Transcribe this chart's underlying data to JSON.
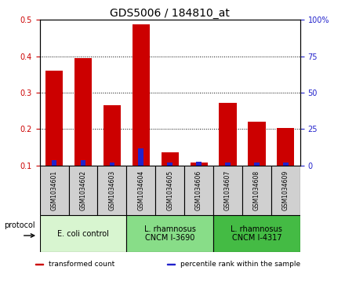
{
  "title": "GDS5006 / 184810_at",
  "samples": [
    "GSM1034601",
    "GSM1034602",
    "GSM1034603",
    "GSM1034604",
    "GSM1034605",
    "GSM1034606",
    "GSM1034607",
    "GSM1034608",
    "GSM1034609"
  ],
  "transformed_count": [
    0.36,
    0.395,
    0.265,
    0.487,
    0.135,
    0.108,
    0.272,
    0.22,
    0.202
  ],
  "percentile_rank": [
    0.115,
    0.115,
    0.108,
    0.147,
    0.108,
    0.11,
    0.108,
    0.108,
    0.108
  ],
  "bar_bottom": 0.1,
  "ylim_left": [
    0.1,
    0.5
  ],
  "ylim_right": [
    0,
    100
  ],
  "yticks_left": [
    0.1,
    0.2,
    0.3,
    0.4,
    0.5
  ],
  "yticks_right": [
    0,
    25,
    50,
    75,
    100
  ],
  "red_color": "#cc0000",
  "blue_color": "#2222cc",
  "protocols": [
    {
      "label": "E. coli control",
      "start": 0,
      "end": 3,
      "color": "#d8f5d0"
    },
    {
      "label": "L. rhamnosus\nCNCM I-3690",
      "start": 3,
      "end": 6,
      "color": "#88dd88"
    },
    {
      "label": "L. rhamnosus\nCNCM I-4317",
      "start": 6,
      "end": 9,
      "color": "#44bb44"
    }
  ],
  "legend_items": [
    {
      "label": "transformed count",
      "color": "#cc0000"
    },
    {
      "label": "percentile rank within the sample",
      "color": "#2222cc"
    }
  ],
  "title_fontsize": 10,
  "tick_fontsize": 7,
  "sample_fontsize": 5.5,
  "proto_fontsize": 7,
  "legend_fontsize": 6.5,
  "protocol_label": "protocol",
  "sample_bg": "#d0d0d0"
}
